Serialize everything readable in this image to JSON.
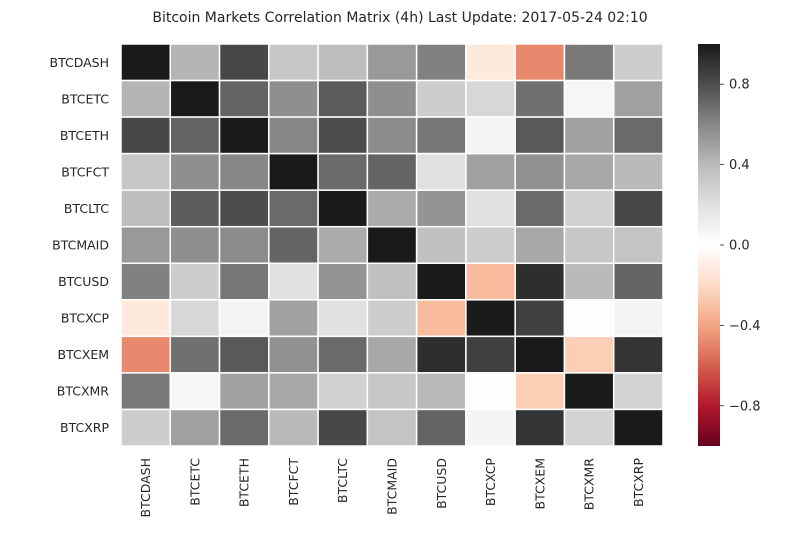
{
  "chart_data": {
    "type": "heatmap",
    "title": "Bitcoin Markets Correlation Matrix (4h) Last Update: 2017-05-24 02:10",
    "rows": [
      "BTCDASH",
      "BTCETC",
      "BTCETH",
      "BTCFCT",
      "BTCLTC",
      "BTCMAID",
      "BTCUSD",
      "BTCXCP",
      "BTCXEM",
      "BTCXMR",
      "BTCXRP"
    ],
    "columns": [
      "BTCDASH",
      "BTCETC",
      "BTCETH",
      "BTCFCT",
      "BTCLTC",
      "BTCMAID",
      "BTCUSD",
      "BTCXCP",
      "BTCXEM",
      "BTCXMR",
      "BTCXRP"
    ],
    "values": [
      [
        1.0,
        0.42,
        0.82,
        0.33,
        0.38,
        0.53,
        0.62,
        -0.12,
        -0.48,
        0.65,
        0.3
      ],
      [
        0.42,
        1.0,
        0.72,
        0.57,
        0.75,
        0.57,
        0.3,
        0.25,
        0.68,
        0.06,
        0.5
      ],
      [
        0.82,
        0.72,
        1.0,
        0.6,
        0.8,
        0.58,
        0.66,
        0.07,
        0.76,
        0.5,
        0.7
      ],
      [
        0.33,
        0.57,
        0.6,
        1.0,
        0.7,
        0.72,
        0.2,
        0.5,
        0.56,
        0.47,
        0.4
      ],
      [
        0.38,
        0.75,
        0.8,
        0.7,
        1.0,
        0.46,
        0.55,
        0.2,
        0.7,
        0.28,
        0.82
      ],
      [
        0.53,
        0.57,
        0.58,
        0.72,
        0.46,
        1.0,
        0.37,
        0.3,
        0.47,
        0.33,
        0.35
      ],
      [
        0.62,
        0.3,
        0.66,
        0.2,
        0.55,
        0.37,
        1.0,
        -0.32,
        0.92,
        0.4,
        0.72
      ],
      [
        -0.12,
        0.25,
        0.07,
        0.5,
        0.2,
        0.3,
        -0.32,
        1.0,
        0.85,
        0.01,
        0.07
      ],
      [
        -0.48,
        0.68,
        0.76,
        0.56,
        0.7,
        0.47,
        0.92,
        0.85,
        1.0,
        -0.25,
        0.9
      ],
      [
        0.65,
        0.06,
        0.5,
        0.47,
        0.28,
        0.33,
        0.4,
        0.01,
        -0.25,
        1.0,
        0.27
      ],
      [
        0.3,
        0.5,
        0.7,
        0.4,
        0.82,
        0.35,
        0.72,
        0.07,
        0.9,
        0.27,
        1.0
      ]
    ],
    "vmin": -1.0,
    "vmax": 1.0,
    "colorbar_ticks": [
      -0.8,
      -0.4,
      0.0,
      0.4,
      0.8
    ],
    "colorbar_labels": [
      "−0.8",
      "−0.4",
      "0.0",
      "0.4",
      "0.8"
    ],
    "colormap": [
      "#67001f",
      "#b2182b",
      "#d6604d",
      "#f4a582",
      "#fddbc7",
      "#ffffff",
      "#e0e0e0",
      "#bababa",
      "#878787",
      "#4d4d4d",
      "#1a1a1a"
    ],
    "grid": false,
    "legend": "colorbar-right"
  }
}
